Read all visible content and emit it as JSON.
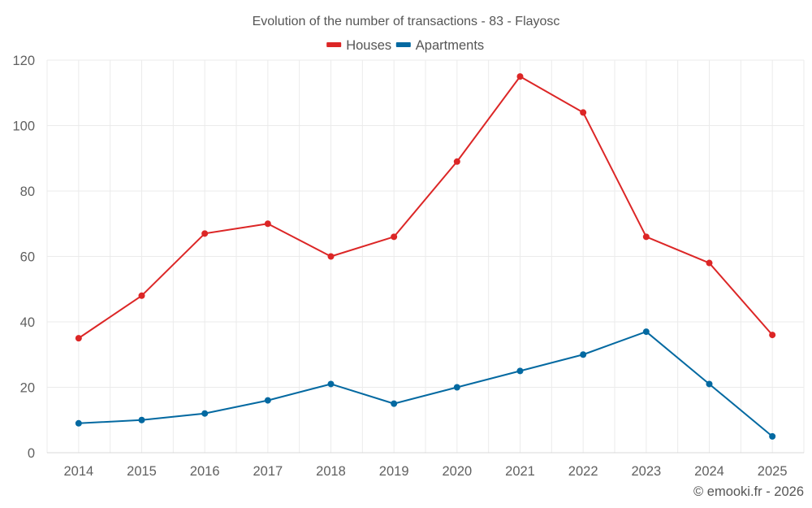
{
  "chart_data": {
    "type": "line",
    "title": "Evolution of the number of transactions - 83 - Flayosc",
    "xlabel": "",
    "ylabel": "",
    "categories": [
      "2014",
      "2015",
      "2016",
      "2017",
      "2018",
      "2019",
      "2020",
      "2021",
      "2022",
      "2023",
      "2024",
      "2025"
    ],
    "series": [
      {
        "name": "Houses",
        "color": "#dc2626",
        "values": [
          35,
          48,
          67,
          70,
          60,
          66,
          89,
          115,
          104,
          66,
          58,
          36
        ]
      },
      {
        "name": "Apartments",
        "color": "#0369a1",
        "values": [
          9,
          10,
          12,
          16,
          21,
          15,
          20,
          25,
          30,
          37,
          21,
          5
        ]
      }
    ],
    "ylim": [
      0,
      120
    ],
    "yticks": [
      "0",
      "20",
      "40",
      "60",
      "80",
      "100",
      "120"
    ],
    "grid": true,
    "legend_position": "top-center",
    "credit": "© emooki.fr - 2026"
  }
}
